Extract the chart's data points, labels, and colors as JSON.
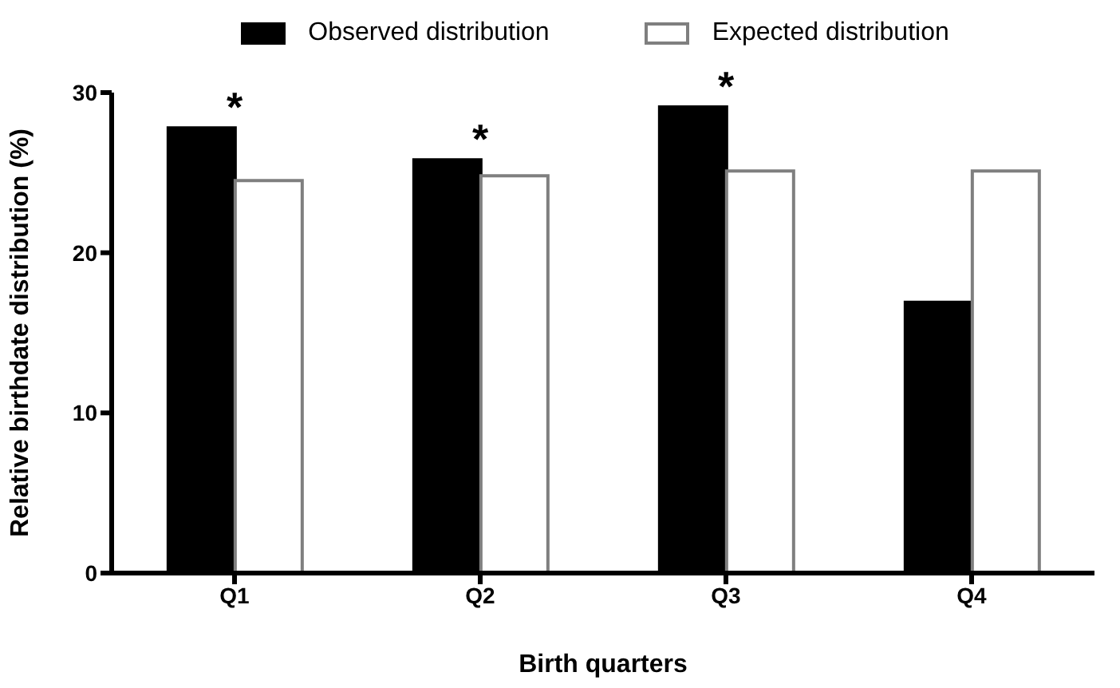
{
  "chart_data": {
    "type": "bar",
    "xlabel": "Birth quarters",
    "ylabel": "Relative birthdate distribution (%)",
    "categories": [
      "Q1",
      "Q2",
      "Q3",
      "Q4"
    ],
    "series": [
      {
        "name": "Observed distribution",
        "color": "#000000",
        "values": [
          27.8,
          25.8,
          29.1,
          16.9
        ]
      },
      {
        "name": "Expected distribution",
        "color": "#ffffff",
        "values": [
          24.5,
          24.8,
          25.1,
          25.1
        ]
      }
    ],
    "ylim": [
      0,
      30
    ],
    "yticks": [
      0,
      10,
      20,
      30
    ],
    "grid": false,
    "legend": "top",
    "annotations": [
      {
        "text": "*",
        "x": "Q1",
        "y": 27.8
      },
      {
        "text": "*",
        "x": "Q2",
        "y": 25.8
      },
      {
        "text": "*",
        "x": "Q3",
        "y": 29.1
      }
    ]
  }
}
